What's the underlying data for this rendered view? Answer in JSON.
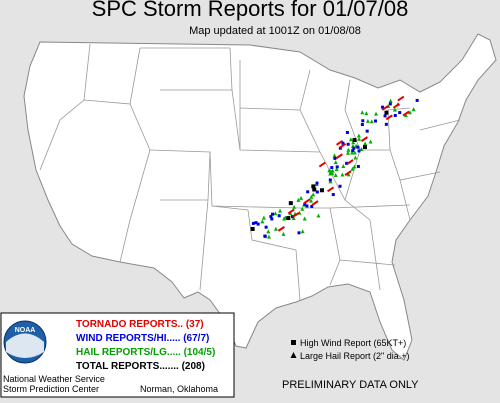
{
  "header": {
    "title": "SPC Storm Reports for 01/07/08",
    "subtitle": "Map updated at 1001Z on 01/08/08"
  },
  "legend": {
    "tornado": "TORNADO REPORTS.. (37)",
    "wind": "WIND REPORTS/HI..... (67/7)",
    "hail": "HAIL REPORTS/LG..... (104/5)",
    "total": "TOTAL REPORTS....... (208)"
  },
  "logo": "NOAA",
  "footer": {
    "agency": "National Weather Service",
    "center": "Storm Prediction Center",
    "location": "Norman, Oklahoma"
  },
  "key": {
    "high_wind": "High Wind Report (65KT+)",
    "large_hail": "Large Hail Report (2\" dia.+)"
  },
  "note": "PRELIMINARY DATA ONLY"
}
